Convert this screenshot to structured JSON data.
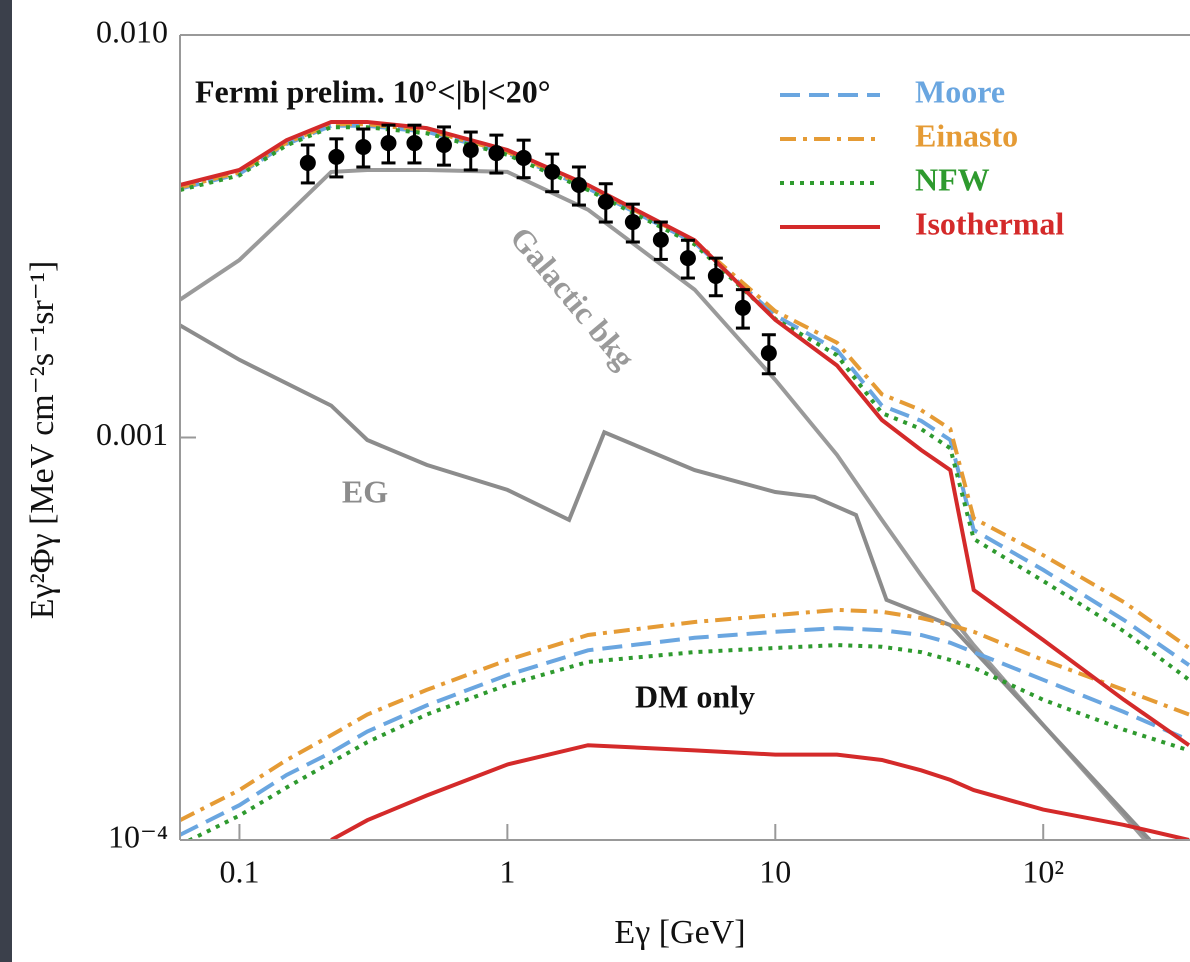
{
  "chart_data": {
    "type": "line",
    "title": "Fermi prelim. 10°<|b|<20°",
    "xlabel": "Eγ [GeV]",
    "ylabel": "Eγ²Φγ [MeV cm⁻²s⁻¹sr⁻¹]",
    "log_x": true,
    "log_y": true,
    "xlim": [
      0.06,
      350
    ],
    "ylim": [
      0.0001,
      0.01
    ],
    "xticks": [
      0.1,
      1,
      10,
      {
        "value": 100,
        "label": "10²"
      }
    ],
    "yticks": [
      {
        "value": 0.0001,
        "label": "10⁻⁴"
      },
      {
        "value": 0.001,
        "label": "0.001"
      },
      {
        "value": 0.01,
        "label": "0.010"
      }
    ],
    "grid": false,
    "legend": "upper right",
    "dm_label": "DM only",
    "x": [
      0.06,
      0.1,
      0.15,
      0.22,
      0.3,
      0.5,
      1,
      2,
      5,
      10,
      17,
      25,
      35,
      45,
      55,
      100,
      200,
      350
    ],
    "series": [
      {
        "name": "Moore",
        "color": "#6aa6e0",
        "dash": "dashed",
        "values": [
          0.00415,
          0.00452,
          0.00536,
          0.00595,
          0.00595,
          0.00575,
          0.00508,
          0.00416,
          0.00305,
          0.00201,
          0.00165,
          0.0012,
          0.0011,
          0.000986,
          0.000589,
          0.000469,
          0.000352,
          0.000272
        ],
        "dm_only": [
          0.000103,
          0.000122,
          0.000145,
          0.000165,
          0.000186,
          0.000216,
          0.000257,
          0.000296,
          0.000318,
          0.000329,
          0.000336,
          0.000332,
          0.000323,
          0.000309,
          0.000293,
          0.00025,
          0.000208,
          0.000177
        ]
      },
      {
        "name": "Einasto",
        "color": "#e59b35",
        "dash": "dashdot",
        "values": [
          0.00418,
          0.00456,
          0.0054,
          0.006,
          0.006,
          0.0058,
          0.00512,
          0.0042,
          0.00308,
          0.00206,
          0.00172,
          0.00128,
          0.00117,
          0.00105,
          0.00063,
          0.00051,
          0.00039,
          0.0003
        ],
        "dm_only": [
          0.000112,
          0.000133,
          0.000158,
          0.000182,
          0.000205,
          0.000236,
          0.00028,
          0.000323,
          0.000348,
          0.000362,
          0.000373,
          0.000369,
          0.000356,
          0.000342,
          0.000329,
          0.00028,
          0.000236,
          0.000205
        ]
      },
      {
        "name": "NFW",
        "color": "#2e9a2e",
        "dash": "dotted",
        "values": [
          0.00412,
          0.00448,
          0.00532,
          0.0059,
          0.0059,
          0.0057,
          0.00504,
          0.00412,
          0.00302,
          0.00197,
          0.0016,
          0.00115,
          0.00105,
          0.00094,
          0.00056,
          0.00044,
          0.00033,
          0.00025
        ],
        "dm_only": [
          9.72e-05,
          0.000115,
          0.000135,
          0.000156,
          0.000175,
          0.000205,
          0.000243,
          0.000277,
          0.000293,
          0.0003,
          0.000305,
          0.000302,
          0.000293,
          0.00028,
          0.000268,
          0.000223,
          0.000188,
          0.000167
        ]
      },
      {
        "name": "Isothermal",
        "color": "#d42a2a",
        "dash": "solid",
        "values": [
          0.00424,
          0.00462,
          0.00548,
          0.00608,
          0.00608,
          0.00587,
          0.00518,
          0.00424,
          0.00309,
          0.00196,
          0.00151,
          0.001105,
          0.000931,
          0.00083,
          0.000418,
          0.000314,
          0.000223,
          0.000172
        ],
        "dm_only": [
          null,
          null,
          null,
          0.0001,
          0.000112,
          0.000129,
          0.000154,
          0.000172,
          0.000167,
          0.000163,
          0.000163,
          0.000158,
          0.000149,
          0.000141,
          0.000133,
          0.000119,
          0.000109,
          0.0001
        ]
      }
    ],
    "background": [
      {
        "name": "Galactic bkg",
        "color": "#9a9a9a",
        "x": [
          0.06,
          0.1,
          0.15,
          0.22,
          0.3,
          0.5,
          1,
          2,
          5,
          10,
          17,
          25,
          35,
          45,
          55,
          100,
          200,
          350
        ],
        "values": [
          0.0022,
          0.00276,
          0.00357,
          0.00457,
          0.00462,
          0.00462,
          0.00457,
          0.00368,
          0.00233,
          0.00139,
          0.000905,
          0.000624,
          0.000455,
          0.000362,
          0.000305,
          0.000193,
          0.000115,
          7.51e-05
        ]
      },
      {
        "name": "EG",
        "color": "#8c8c8c",
        "x": [
          0.06,
          0.1,
          0.22,
          0.3,
          0.5,
          1,
          1.7,
          2.3,
          5,
          10,
          14,
          20,
          26,
          45,
          100,
          250
        ],
        "values": [
          0.0019,
          0.00156,
          0.0012,
          0.000986,
          0.000855,
          0.000741,
          0.000624,
          0.00103,
          0.00083,
          0.000732,
          0.000712,
          0.000642,
          0.000395,
          0.000342,
          0.000193,
          0.0001
        ]
      }
    ],
    "points": {
      "color": "#000000",
      "x": [
        0.18,
        0.23,
        0.29,
        0.36,
        0.45,
        0.58,
        0.73,
        0.91,
        1.15,
        1.47,
        1.85,
        2.33,
        2.94,
        3.74,
        4.72,
        6.0,
        7.57,
        9.46
      ],
      "values": [
        0.00481,
        0.00498,
        0.00527,
        0.00539,
        0.00539,
        0.00533,
        0.00518,
        0.00509,
        0.00495,
        0.00457,
        0.00424,
        0.00385,
        0.00343,
        0.0031,
        0.00279,
        0.00252,
        0.0021,
        0.00162
      ],
      "errors": [
        0.00052,
        0.00054,
        0.00057,
        0.00058,
        0.00058,
        0.00058,
        0.00056,
        0.00055,
        0.00053,
        0.00049,
        0.00046,
        0.00042,
        0.00037,
        0.00033,
        0.0003,
        0.00027,
        0.00023,
        0.00018
      ]
    }
  }
}
